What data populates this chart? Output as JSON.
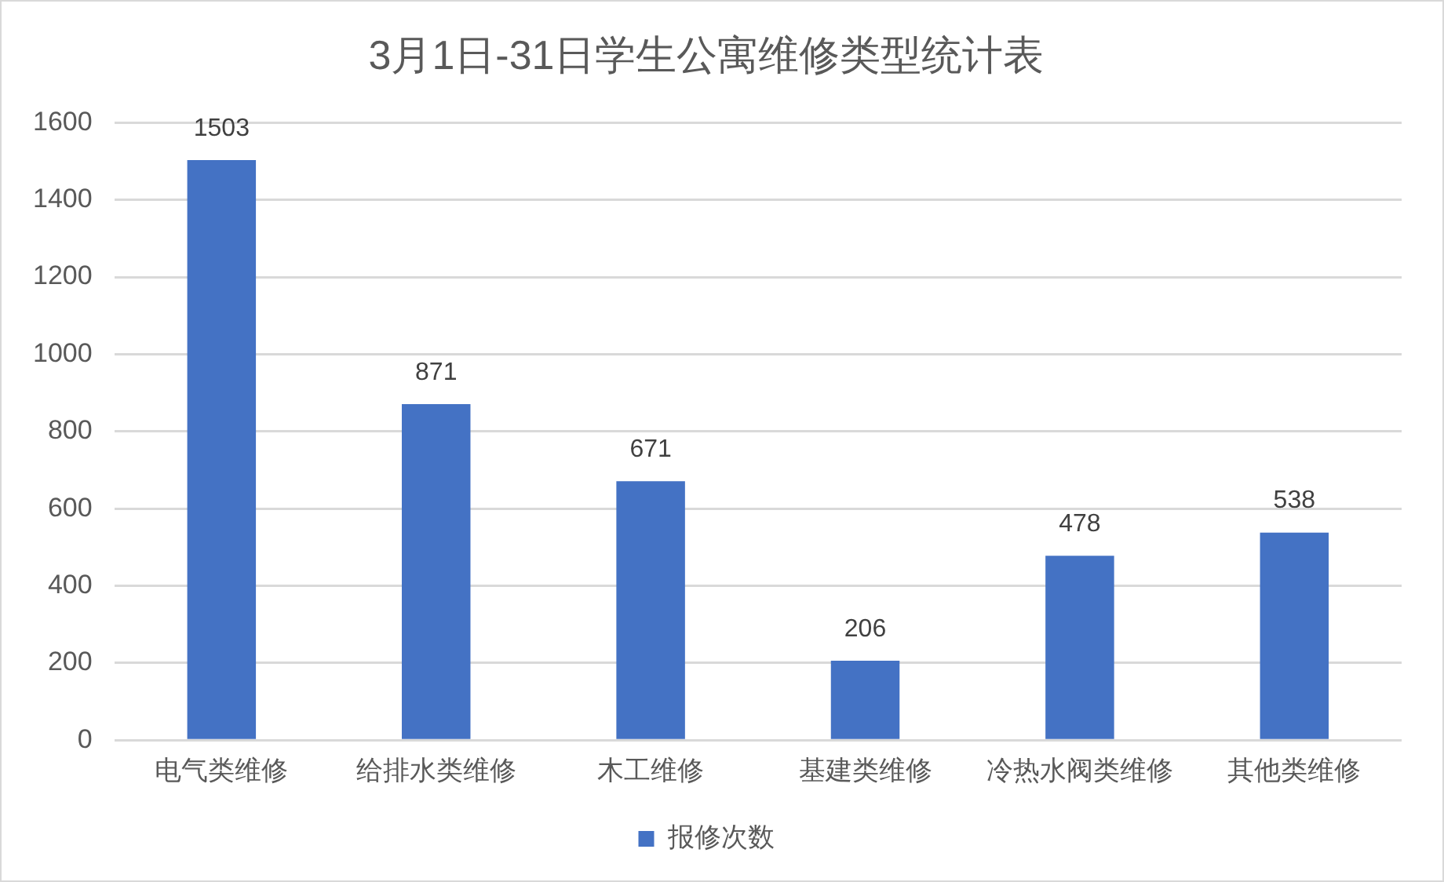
{
  "chart_data": {
    "type": "bar",
    "title": "3月1日-31日学生公寓维修类型统计表",
    "categories": [
      "电气类维修",
      "给排水类维修",
      "木工维修",
      "基建类维修",
      "冷热水阀类维修",
      "其他类维修"
    ],
    "series": [
      {
        "name": "报修次数",
        "color": "#4472c4",
        "values": [
          1503,
          871,
          671,
          206,
          478,
          538
        ]
      }
    ],
    "ylim": [
      0,
      1600
    ],
    "yticks": [
      0,
      200,
      400,
      600,
      800,
      1000,
      1200,
      1400,
      1600
    ],
    "grid": "y",
    "legend": "bottom",
    "data_labels": true
  }
}
